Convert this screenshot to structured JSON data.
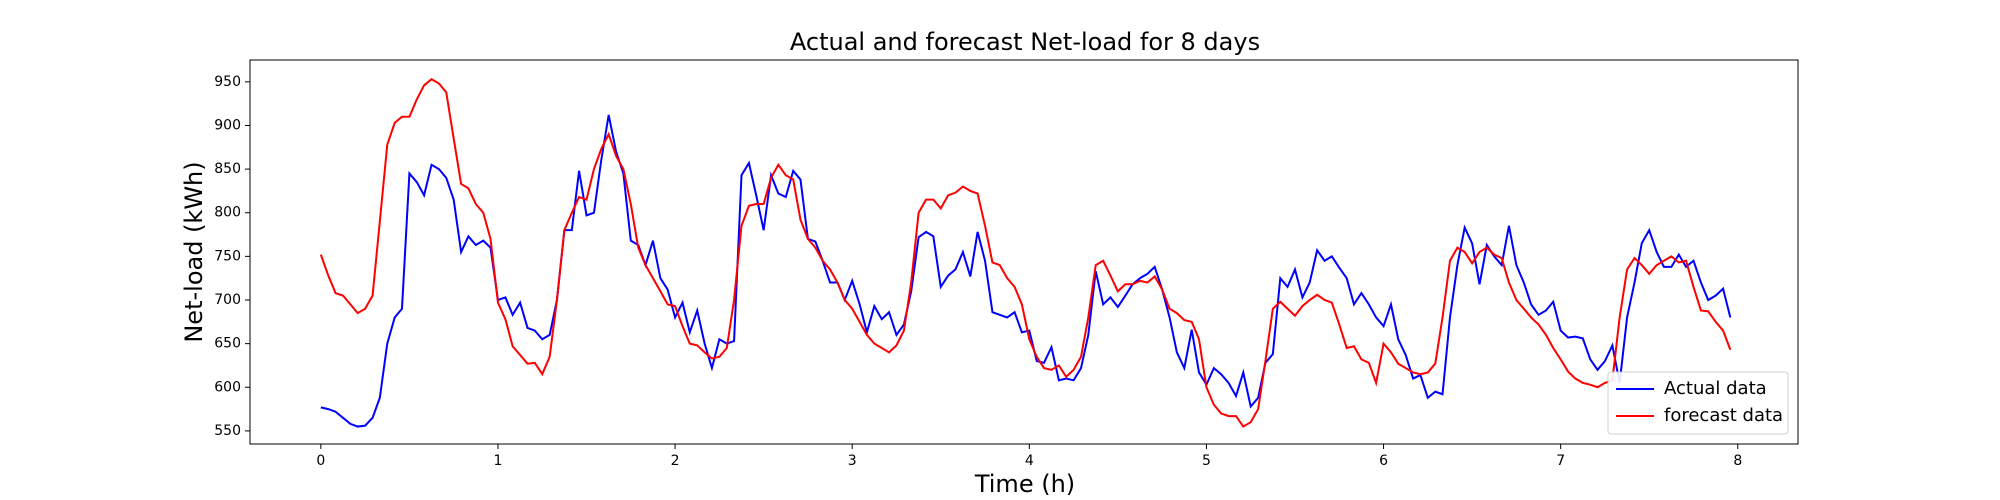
{
  "chart_data": {
    "type": "line",
    "title": "Actual and forecast Net-load for 8 days",
    "x_label": "Time (h)",
    "y_label": "Net-load (kWh)",
    "xlim": [
      -0.4,
      8.34
    ],
    "ylim": [
      535,
      975
    ],
    "xticks": [
      0,
      1,
      2,
      3,
      4,
      5,
      6,
      7,
      8
    ],
    "yticks": [
      550,
      600,
      650,
      700,
      750,
      800,
      850,
      900,
      950
    ],
    "legend": "lower right",
    "grid": false,
    "x": [
      0,
      0.042,
      0.083,
      0.125,
      0.167,
      0.208,
      0.25,
      0.292,
      0.333,
      0.375,
      0.417,
      0.458,
      0.5,
      0.542,
      0.583,
      0.625,
      0.667,
      0.708,
      0.75,
      0.792,
      0.833,
      0.875,
      0.917,
      0.958,
      1,
      1.042,
      1.083,
      1.125,
      1.167,
      1.208,
      1.25,
      1.292,
      1.333,
      1.375,
      1.417,
      1.458,
      1.5,
      1.542,
      1.583,
      1.625,
      1.667,
      1.708,
      1.75,
      1.792,
      1.833,
      1.875,
      1.917,
      1.958,
      2,
      2.042,
      2.083,
      2.125,
      2.167,
      2.208,
      2.25,
      2.292,
      2.333,
      2.375,
      2.417,
      2.458,
      2.5,
      2.542,
      2.583,
      2.625,
      2.667,
      2.708,
      2.75,
      2.792,
      2.833,
      2.875,
      2.917,
      2.958,
      3,
      3.042,
      3.083,
      3.125,
      3.167,
      3.208,
      3.25,
      3.292,
      3.333,
      3.375,
      3.417,
      3.458,
      3.5,
      3.542,
      3.583,
      3.625,
      3.667,
      3.708,
      3.75,
      3.792,
      3.833,
      3.875,
      3.917,
      3.958,
      4,
      4.042,
      4.083,
      4.125,
      4.167,
      4.208,
      4.25,
      4.292,
      4.333,
      4.375,
      4.417,
      4.458,
      4.5,
      4.542,
      4.583,
      4.625,
      4.667,
      4.708,
      4.75,
      4.792,
      4.833,
      4.875,
      4.917,
      4.958,
      5,
      5.042,
      5.083,
      5.125,
      5.167,
      5.208,
      5.25,
      5.292,
      5.333,
      5.375,
      5.417,
      5.458,
      5.5,
      5.542,
      5.583,
      5.625,
      5.667,
      5.708,
      5.75,
      5.792,
      5.833,
      5.875,
      5.917,
      5.958,
      6,
      6.042,
      6.083,
      6.125,
      6.167,
      6.208,
      6.25,
      6.292,
      6.333,
      6.375,
      6.417,
      6.458,
      6.5,
      6.542,
      6.583,
      6.625,
      6.667,
      6.708,
      6.75,
      6.792,
      6.833,
      6.875,
      6.917,
      6.958,
      7,
      7.042,
      7.083,
      7.125,
      7.167,
      7.208,
      7.25,
      7.292,
      7.333,
      7.375,
      7.417,
      7.458,
      7.5,
      7.542,
      7.583,
      7.625,
      7.667,
      7.708,
      7.75,
      7.792,
      7.833,
      7.875,
      7.917,
      7.958
    ],
    "series": [
      {
        "name": "Actual data",
        "color": "#0000ff",
        "values": [
          577,
          575,
          572,
          565,
          558,
          555,
          556,
          565,
          588,
          650,
          680,
          690,
          845,
          835,
          820,
          855,
          850,
          840,
          815,
          755,
          773,
          763,
          768,
          760,
          700,
          703,
          683,
          697,
          668,
          665,
          655,
          660,
          700,
          780,
          780,
          848,
          797,
          800,
          860,
          912,
          870,
          845,
          768,
          763,
          740,
          768,
          725,
          712,
          680,
          697,
          663,
          688,
          650,
          622,
          655,
          650,
          653,
          843,
          857,
          820,
          780,
          843,
          822,
          818,
          848,
          838,
          770,
          767,
          745,
          720,
          720,
          700,
          722,
          695,
          663,
          693,
          678,
          686,
          660,
          672,
          710,
          772,
          778,
          773,
          715,
          728,
          735,
          755,
          727,
          778,
          745,
          686,
          683,
          680,
          686,
          663,
          665,
          630,
          628,
          646,
          608,
          610,
          608,
          622,
          660,
          733,
          695,
          703,
          692,
          705,
          718,
          725,
          730,
          738,
          712,
          680,
          640,
          622,
          666,
          617,
          603,
          622,
          615,
          605,
          590,
          617,
          578,
          588,
          628,
          638,
          725,
          715,
          735,
          703,
          720,
          757,
          745,
          750,
          737,
          725,
          695,
          708,
          695,
          680,
          670,
          695,
          655,
          637,
          610,
          614,
          588,
          595,
          592,
          680,
          740,
          783,
          765,
          718,
          763,
          750,
          740,
          785,
          740,
          720,
          695,
          683,
          688,
          698,
          665,
          657,
          658,
          656,
          632,
          620,
          630,
          648,
          605,
          680,
          720,
          765,
          780,
          755,
          738,
          738,
          752,
          738,
          745,
          720,
          700,
          705,
          713,
          680
        ]
      },
      {
        "name": "forecast data",
        "color": "#ff0000",
        "values": [
          752,
          728,
          708,
          705,
          695,
          685,
          690,
          705,
          790,
          878,
          903,
          910,
          910,
          930,
          946,
          953,
          948,
          938,
          885,
          833,
          828,
          810,
          800,
          770,
          697,
          678,
          647,
          637,
          627,
          628,
          615,
          635,
          700,
          780,
          800,
          818,
          815,
          850,
          873,
          890,
          865,
          850,
          810,
          760,
          740,
          725,
          710,
          695,
          693,
          670,
          650,
          648,
          640,
          633,
          635,
          645,
          700,
          785,
          808,
          810,
          810,
          840,
          855,
          843,
          838,
          792,
          770,
          760,
          745,
          735,
          720,
          700,
          690,
          675,
          660,
          650,
          645,
          640,
          648,
          665,
          720,
          800,
          815,
          815,
          805,
          820,
          823,
          830,
          825,
          822,
          785,
          743,
          740,
          725,
          715,
          695,
          655,
          635,
          622,
          620,
          625,
          612,
          620,
          635,
          680,
          740,
          745,
          728,
          710,
          718,
          718,
          722,
          720,
          727,
          712,
          690,
          685,
          677,
          675,
          655,
          600,
          580,
          570,
          567,
          567,
          555,
          560,
          575,
          630,
          690,
          698,
          690,
          682,
          693,
          700,
          706,
          700,
          697,
          672,
          645,
          647,
          632,
          628,
          605,
          650,
          640,
          627,
          622,
          617,
          615,
          617,
          627,
          680,
          745,
          760,
          755,
          742,
          755,
          760,
          752,
          748,
          720,
          700,
          690,
          680,
          672,
          660,
          645,
          632,
          618,
          610,
          605,
          603,
          600,
          605,
          608,
          680,
          735,
          748,
          740,
          730,
          740,
          745,
          750,
          743,
          745,
          715,
          688,
          687,
          675,
          665,
          643
        ]
      }
    ]
  }
}
